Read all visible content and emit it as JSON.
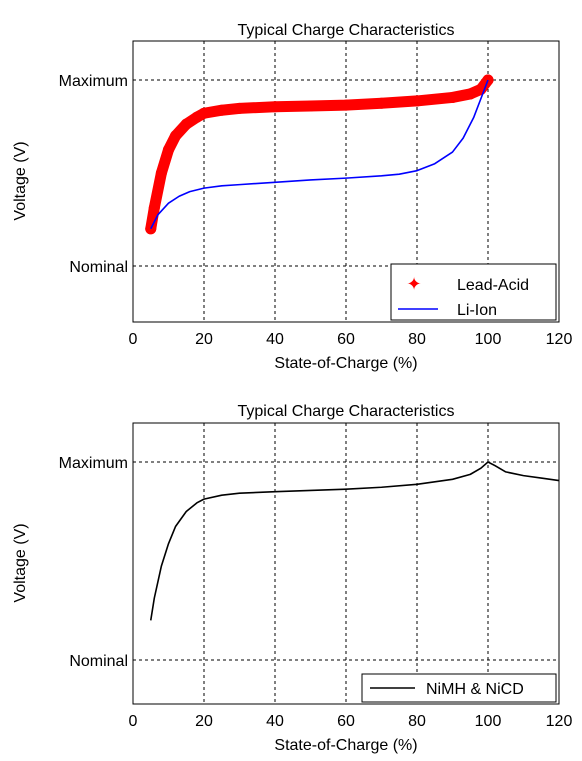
{
  "chart_data": [
    {
      "type": "line",
      "title": "Typical Charge Characteristics",
      "xlabel": "State-of-Charge (%)",
      "ylabel": "Voltage (V)",
      "xlim": [
        0,
        120
      ],
      "ylim": [
        0,
        1
      ],
      "x_ticks": [
        "0",
        "20",
        "40",
        "60",
        "80",
        "100",
        "120"
      ],
      "y_ticks": [
        {
          "value": 0.2,
          "label": "Nominal"
        },
        {
          "value": 1.0,
          "label": "Maximum"
        }
      ],
      "grid": true,
      "legend_position": "bottom-right",
      "series": [
        {
          "name": "Lead-Acid",
          "color": "#ff0000",
          "marker": "star",
          "x": [
            5,
            6,
            8,
            10,
            12,
            15,
            18,
            20,
            25,
            30,
            40,
            50,
            60,
            70,
            80,
            90,
            95,
            98,
            100
          ],
          "values": [
            0.36,
            0.45,
            0.6,
            0.7,
            0.76,
            0.81,
            0.84,
            0.857,
            0.87,
            0.878,
            0.885,
            0.888,
            0.892,
            0.9,
            0.91,
            0.925,
            0.94,
            0.96,
            1.0
          ]
        },
        {
          "name": "Li-Ion",
          "color": "#0000ff",
          "marker": "none",
          "x": [
            5,
            7,
            10,
            13,
            16,
            20,
            25,
            30,
            40,
            50,
            60,
            70,
            75,
            80,
            85,
            90,
            93,
            96,
            98,
            100
          ],
          "values": [
            0.36,
            0.42,
            0.47,
            0.5,
            0.52,
            0.535,
            0.545,
            0.55,
            0.56,
            0.57,
            0.578,
            0.588,
            0.595,
            0.61,
            0.64,
            0.69,
            0.75,
            0.84,
            0.92,
            1.0
          ]
        }
      ]
    },
    {
      "type": "line",
      "title": "Typical Charge Characteristics",
      "xlabel": "State-of-Charge (%)",
      "ylabel": "Voltage (V)",
      "xlim": [
        0,
        120
      ],
      "ylim": [
        0,
        1
      ],
      "x_ticks": [
        "0",
        "20",
        "40",
        "60",
        "80",
        "100",
        "120"
      ],
      "y_ticks": [
        {
          "value": 0.2,
          "label": "Nominal"
        },
        {
          "value": 1.0,
          "label": "Maximum"
        }
      ],
      "grid": true,
      "legend_position": "bottom-right",
      "series": [
        {
          "name": "NiMH & NiCD",
          "color": "#000000",
          "marker": "none",
          "x": [
            5,
            6,
            8,
            10,
            12,
            15,
            18,
            20,
            25,
            30,
            40,
            50,
            60,
            70,
            80,
            90,
            95,
            98,
            100,
            102,
            105,
            110,
            115,
            120
          ],
          "values": [
            0.36,
            0.45,
            0.58,
            0.67,
            0.74,
            0.8,
            0.835,
            0.85,
            0.866,
            0.874,
            0.88,
            0.885,
            0.89,
            0.898,
            0.91,
            0.93,
            0.95,
            0.975,
            1.0,
            0.985,
            0.96,
            0.945,
            0.935,
            0.925
          ]
        }
      ]
    }
  ]
}
